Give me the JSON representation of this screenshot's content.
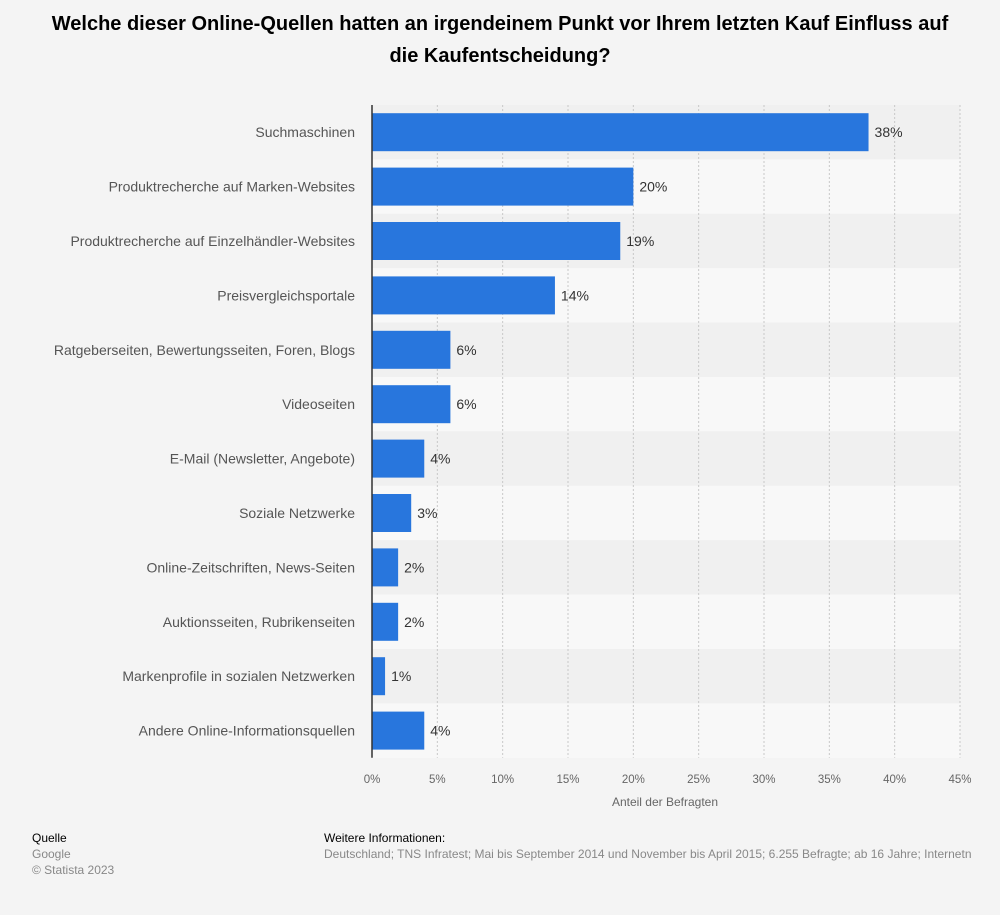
{
  "title": "Welche dieser Online-Quellen hatten an irgendeinem Punkt vor Ihrem letzten Kauf Einfluss auf die Kaufentscheidung?",
  "footer": {
    "source_heading": "Quelle",
    "source": "Google",
    "copyright": "© Statista 2023",
    "info_heading": "Weitere Informationen:",
    "info": "Deutschland; TNS Infratest; Mai bis September 2014 und November bis April 2015; 6.255 Befragte; ab 16 Jahre; Internetn"
  },
  "colors": {
    "bar": "#2876dd",
    "band_dark": "#f0f0f0",
    "band_light": "#f8f8f8",
    "grid": "#c8c8c8",
    "axis": "#333333"
  },
  "chart_data": {
    "type": "bar",
    "orientation": "horizontal",
    "categories": [
      "Suchmaschinen",
      "Produktrecherche auf Marken-Websites",
      "Produktrecherche auf Einzelhändler-Websites",
      "Preisvergleichsportale",
      "Ratgeberseiten, Bewertungsseiten, Foren, Blogs",
      "Videoseiten",
      "E-Mail (Newsletter, Angebote)",
      "Soziale Netzwerke",
      "Online-Zeitschriften, News-Seiten",
      "Auktionsseiten, Rubrikenseiten",
      "Markenprofile in sozialen Netzwerken",
      "Andere Online-Informationsquellen"
    ],
    "values": [
      38,
      20,
      19,
      14,
      6,
      6,
      4,
      3,
      2,
      2,
      1,
      4
    ],
    "value_labels": [
      "38%",
      "20%",
      "19%",
      "14%",
      "6%",
      "6%",
      "4%",
      "3%",
      "2%",
      "2%",
      "1%",
      "4%"
    ],
    "xlim": [
      0,
      45
    ],
    "ticks": [
      "0%",
      "5%",
      "10%",
      "15%",
      "20%",
      "25%",
      "30%",
      "35%",
      "40%",
      "45%"
    ],
    "xlabel": "Anteil der Befragten",
    "grid": true
  }
}
